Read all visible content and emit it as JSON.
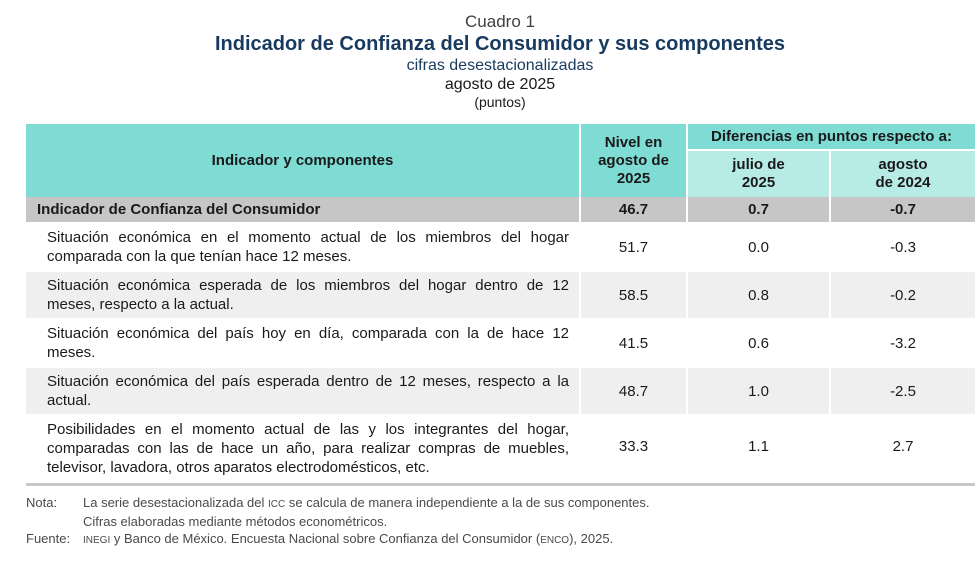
{
  "header": {
    "cuadro": "Cuadro 1",
    "title": "Indicador de Confianza del Consumidor y sus componentes",
    "subtitle": "cifras desestacionalizadas",
    "period": "agosto de 2025",
    "units": "(puntos)"
  },
  "table": {
    "columns": {
      "indicator": "Indicador y componentes",
      "level": "Nivel en agosto de 2025",
      "diff_group": "Diferencias en puntos respecto a:",
      "diff_prev_month": "julio de 2025",
      "diff_prev_year": "agosto de 2024"
    },
    "headline": {
      "label": "Indicador de Confianza del Consumidor",
      "level": "46.7",
      "diff_month": "0.7",
      "diff_year": "-0.7"
    },
    "rows": [
      {
        "label": "Situación económica en el momento actual de los miembros del hogar comparada con la que tenían hace 12 meses.",
        "level": "51.7",
        "diff_month": "0.0",
        "diff_year": "-0.3"
      },
      {
        "label": "Situación económica esperada de los miembros del hogar dentro de 12 meses, respecto a la actual.",
        "level": "58.5",
        "diff_month": "0.8",
        "diff_year": "-0.2"
      },
      {
        "label": "Situación económica del país hoy en día, comparada con la de hace 12 meses.",
        "level": "41.5",
        "diff_month": "0.6",
        "diff_year": "-3.2"
      },
      {
        "label": "Situación económica del país esperada dentro de 12 meses, respecto a la actual.",
        "level": "48.7",
        "diff_month": "1.0",
        "diff_year": "-2.5"
      },
      {
        "label": "Posibilidades en el momento actual de las y los integrantes del hogar, comparadas con las de hace un año, para realizar compras de muebles, televisor, lavadora, otros aparatos electrodomésticos, etc.",
        "level": "33.3",
        "diff_month": "1.1",
        "diff_year": "2.7"
      }
    ]
  },
  "notes": {
    "nota_label": "Nota:",
    "nota_line1_pre": "La serie desestacionalizada del ",
    "nota_line1_abbr": "ICC",
    "nota_line1_post": " se calcula de manera independiente a la de sus componentes.",
    "nota_line2": "Cifras elaboradas mediante métodos econométricos.",
    "fuente_label": "Fuente:",
    "fuente_abbr1": "INEGI",
    "fuente_mid": " y Banco de México. Encuesta Nacional sobre Confianza del Consumidor (",
    "fuente_abbr2": "ENCO",
    "fuente_post": "), 2025."
  },
  "colors": {
    "header_teal": "#7fdcd4",
    "subheader_teal": "#b6ebe6",
    "headline_gray": "#c6c6c6",
    "alt_row_gray": "#efefef",
    "title_navy": "#173a5e"
  }
}
